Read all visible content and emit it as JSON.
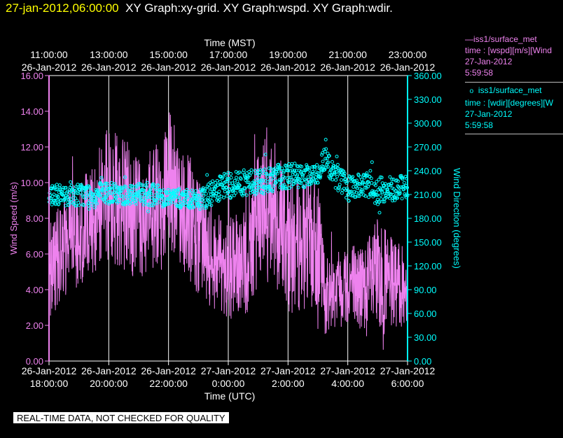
{
  "header": {
    "timestamp": "27-jan-2012,06:00:00",
    "graphs": "XY Graph:xy-grid.  XY Graph:wspd.  XY Graph:wdir."
  },
  "legend": {
    "wspd": {
      "name": "iss1/surface_met",
      "desc": "time : [wspd][m/s][Wind",
      "date": "27-Jan-2012",
      "time": "5:59:58"
    },
    "wdir": {
      "name": "iss1/surface_met",
      "desc": "time : [wdir][degrees][W",
      "date": "27-Jan-2012",
      "time": "5:59:58"
    }
  },
  "note": "REAL-TIME DATA, NOT CHECKED FOR QUALITY",
  "colors": {
    "wspd": "#ee82ee",
    "wdir": "#00ffff",
    "grid": "#ffffff",
    "header_time": "#ffff00"
  },
  "chart_data": {
    "type": "line",
    "top_axis": {
      "title": "Time (MST)",
      "ticks": [
        {
          "time": "11:00:00",
          "date": "26-Jan-2012"
        },
        {
          "time": "13:00:00",
          "date": "26-Jan-2012"
        },
        {
          "time": "15:00:00",
          "date": "26-Jan-2012"
        },
        {
          "time": "17:00:00",
          "date": "26-Jan-2012"
        },
        {
          "time": "19:00:00",
          "date": "26-Jan-2012"
        },
        {
          "time": "21:00:00",
          "date": "26-Jan-2012"
        },
        {
          "time": "23:00:00",
          "date": "26-Jan-2012"
        }
      ]
    },
    "bottom_axis": {
      "title": "Time (UTC)",
      "ticks": [
        {
          "date": "26-Jan-2012",
          "time": "18:00:00"
        },
        {
          "date": "26-Jan-2012",
          "time": "20:00:00"
        },
        {
          "date": "26-Jan-2012",
          "time": "22:00:00"
        },
        {
          "date": "27-Jan-2012",
          "time": "0:00:00"
        },
        {
          "date": "27-Jan-2012",
          "time": "2:00:00"
        },
        {
          "date": "27-Jan-2012",
          "time": "4:00:00"
        },
        {
          "date": "27-Jan-2012",
          "time": "6:00:00"
        }
      ]
    },
    "xlim_utc_hours": [
      18,
      30
    ],
    "left_axis": {
      "label": "Wind Speed (m/s)",
      "ylim": [
        0,
        16
      ],
      "ticks": [
        "0.00",
        "2.00",
        "4.00",
        "6.00",
        "8.00",
        "10.00",
        "12.00",
        "14.00",
        "16.00"
      ]
    },
    "right_axis": {
      "label": "Wind Direction (degrees)",
      "ylim": [
        0,
        360
      ],
      "ticks": [
        "0.00",
        "30.00",
        "60.00",
        "90.00",
        "120.00",
        "150.00",
        "180.00",
        "210.00",
        "240.00",
        "270.00",
        "300.00",
        "330.00",
        "360.00"
      ]
    },
    "grid": "vertical",
    "series": [
      {
        "key": "wspd",
        "style": "line",
        "axis": "left",
        "x": [
          18.0,
          18.5,
          19.0,
          19.5,
          20.0,
          20.5,
          21.0,
          21.5,
          22.0,
          22.5,
          23.0,
          23.5,
          24.0,
          24.5,
          25.0,
          25.5,
          26.0,
          26.5,
          27.0,
          27.25,
          27.5,
          28.0,
          28.5,
          29.0,
          29.5,
          30.0
        ],
        "center": [
          4.8,
          6.5,
          7.2,
          8.0,
          9.5,
          8.8,
          8.0,
          8.5,
          10.5,
          8.6,
          7.0,
          5.5,
          5.3,
          5.2,
          8.0,
          8.5,
          6.5,
          6.6,
          6.5,
          3.6,
          4.0,
          4.5,
          4.0,
          4.6,
          4.3,
          4.1
        ],
        "range": [
          3.0,
          3.5,
          3.5,
          4.0,
          4.5,
          4.5,
          4.0,
          4.0,
          5.0,
          4.5,
          4.0,
          3.5,
          3.5,
          3.5,
          5.0,
          5.5,
          4.5,
          4.5,
          4.5,
          2.5,
          2.5,
          3.0,
          3.0,
          4.0,
          3.0,
          2.5
        ]
      },
      {
        "key": "wdir",
        "style": "scatter",
        "axis": "right",
        "x": [
          18.0,
          18.5,
          19.0,
          19.5,
          20.0,
          20.5,
          21.0,
          21.5,
          22.0,
          22.5,
          23.0,
          23.5,
          24.0,
          24.5,
          25.0,
          25.5,
          26.0,
          26.5,
          27.0,
          27.25,
          27.5,
          28.0,
          28.5,
          29.0,
          29.5,
          30.0
        ],
        "center": [
          212,
          208,
          210,
          210,
          212,
          209,
          212,
          210,
          206,
          205,
          202,
          212,
          222,
          225,
          226,
          230,
          235,
          232,
          236,
          262,
          238,
          218,
          222,
          214,
          218,
          220
        ],
        "range": [
          18,
          15,
          18,
          18,
          18,
          15,
          18,
          18,
          15,
          15,
          15,
          20,
          22,
          20,
          22,
          20,
          22,
          18,
          18,
          25,
          22,
          20,
          18,
          22,
          20,
          18
        ]
      }
    ]
  }
}
